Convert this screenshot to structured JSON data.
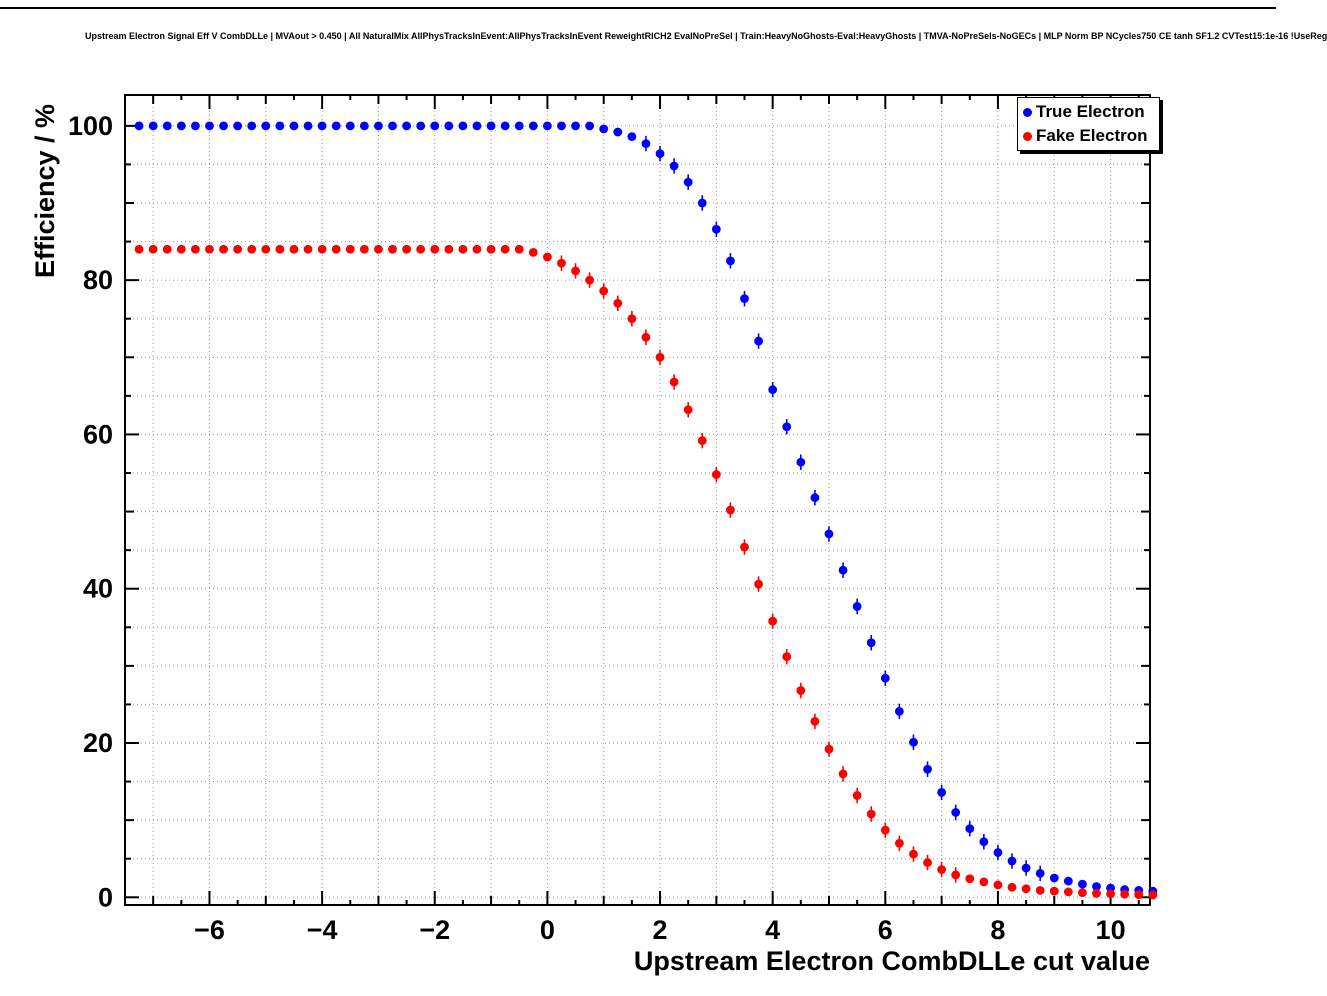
{
  "header": {
    "title": "Upstream Electron Signal Eff V CombDLLe | MVAout > 0.450 | All NaturalMix AllPhysTracksInEvent:AllPhysTracksInEvent ReweightRICH2 EvalNoPreSel | Train:HeavyNoGhosts-Eval:HeavyGhosts | TMVA-NoPreSels-NoGECs | MLP Norm BP NCycles750 CE tanh SF1.2 CVTest15:1e-16 !UseReg"
  },
  "axes": {
    "x_title": "Upstream Electron CombDLLe cut value",
    "y_title": "Efficiency / %",
    "x_tick_labels": [
      "−6",
      "−4",
      "−2",
      "0",
      "2",
      "4",
      "6",
      "8",
      "10"
    ],
    "y_tick_labels": [
      "0",
      "20",
      "40",
      "60",
      "80",
      "100"
    ]
  },
  "legend": {
    "items": [
      {
        "label": "True Electron",
        "color": "#0000ff"
      },
      {
        "label": "Fake Electron",
        "color": "#ff0000"
      }
    ]
  },
  "chart_data": {
    "type": "scatter",
    "title": "Upstream Electron Signal Eff V CombDLLe | MVAout > 0.450 | All NaturalMix AllPhysTracksInEvent:AllPhysTracksInEvent ReweightRICH2 EvalNoPreSel | Train:HeavyNoGhosts-Eval:HeavyGhosts | TMVA-NoPreSels-NoGECs | MLP Norm BP NCycles750 CE tanh SF1.2 CVTest15:1e-16 !UseReg",
    "xlabel": "Upstream Electron CombDLLe cut value",
    "ylabel": "Efficiency / %",
    "xlim": [
      -7.5,
      10.7
    ],
    "ylim": [
      -1,
      104
    ],
    "x_ticks_major": [
      -6,
      -4,
      -2,
      0,
      2,
      4,
      6,
      8,
      10
    ],
    "y_ticks_major": [
      0,
      20,
      40,
      60,
      80,
      100
    ],
    "grid": {
      "on": true,
      "x_every": 1,
      "y_every": 5,
      "style": "dotted"
    },
    "legend_position": "top-right",
    "marker": {
      "shape": "circle",
      "radius": 4.4
    },
    "x": [
      -7.25,
      -7,
      -6.75,
      -6.5,
      -6.25,
      -6,
      -5.75,
      -5.5,
      -5.25,
      -5,
      -4.75,
      -4.5,
      -4.25,
      -4,
      -3.75,
      -3.5,
      -3.25,
      -3,
      -2.75,
      -2.5,
      -2.25,
      -2,
      -1.75,
      -1.5,
      -1.25,
      -1,
      -0.75,
      -0.5,
      -0.25,
      0,
      0.25,
      0.5,
      0.75,
      1,
      1.25,
      1.5,
      1.75,
      2,
      2.25,
      2.5,
      2.75,
      3,
      3.25,
      3.5,
      3.75,
      4,
      4.25,
      4.5,
      4.75,
      5,
      5.25,
      5.5,
      5.75,
      6,
      6.25,
      6.5,
      6.75,
      7,
      7.25,
      7.5,
      7.75,
      8,
      8.25,
      8.5,
      8.75,
      9,
      9.25,
      9.5,
      9.75,
      10,
      10.25,
      10.5,
      10.75
    ],
    "series": [
      {
        "name": "True Electron",
        "color": "#0000ff",
        "values": [
          100,
          100,
          100,
          100,
          100,
          100,
          100,
          100,
          100,
          100,
          100,
          100,
          100,
          100,
          100,
          100,
          100,
          100,
          100,
          100,
          100,
          100,
          100,
          100,
          100,
          100,
          100,
          100,
          100,
          100,
          100,
          100,
          100,
          99.6,
          99.2,
          98.6,
          97.7,
          96.4,
          94.8,
          92.7,
          90.0,
          86.6,
          82.5,
          77.6,
          72.1,
          65.8,
          61.0,
          56.4,
          51.8,
          47.1,
          42.4,
          37.7,
          33.0,
          28.4,
          24.1,
          20.1,
          16.6,
          13.6,
          11.0,
          8.9,
          7.2,
          5.8,
          4.7,
          3.8,
          3.1,
          2.5,
          2.1,
          1.7,
          1.4,
          1.2,
          1.0,
          0.9,
          0.8
        ]
      },
      {
        "name": "Fake Electron",
        "color": "#ff0000",
        "values": [
          84,
          84,
          84,
          84,
          84,
          84,
          84,
          84,
          84,
          84,
          84,
          84,
          84,
          84,
          84,
          84,
          84,
          84,
          84,
          84,
          84,
          84,
          84,
          84,
          84,
          84,
          84,
          84,
          83.6,
          83.0,
          82.2,
          81.2,
          80.0,
          78.6,
          77.0,
          75.0,
          72.6,
          70.0,
          66.8,
          63.2,
          59.2,
          54.8,
          50.2,
          45.4,
          40.6,
          35.8,
          31.2,
          26.8,
          22.8,
          19.2,
          16.0,
          13.2,
          10.8,
          8.7,
          7.0,
          5.6,
          4.5,
          3.6,
          2.9,
          2.4,
          2.0,
          1.6,
          1.3,
          1.1,
          0.9,
          0.8,
          0.7,
          0.6,
          0.5,
          0.45,
          0.4,
          0.35,
          0.3
        ]
      }
    ]
  }
}
